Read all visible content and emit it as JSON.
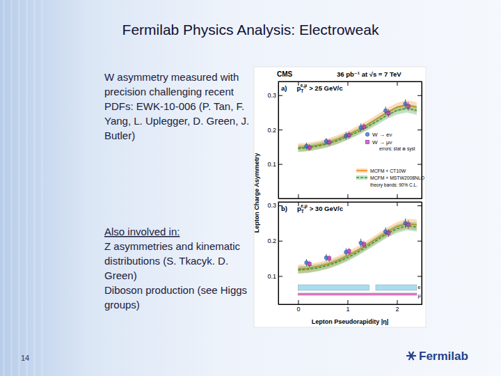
{
  "slide": {
    "title": "Fermilab Physics Analysis: Electroweak",
    "lines": [
      "W asymmetry measured with",
      "precision challenging recent",
      "PDFs:  EWK-10-006 (P. Tan, F.",
      "Yang, L. Uplegger, D. Green, J.",
      "Butler)"
    ],
    "also_heading": "Also involved in:",
    "also_lines": [
      "Z asymmetries and kinematic",
      "distributions (S. Tkacyk. D.",
      "Green)",
      "Diboson production (see Higgs",
      "groups)"
    ],
    "page_number": "14",
    "logo": "Fermilab"
  },
  "figure": {
    "experiment": "CMS",
    "luminosity": "36 pb⁻¹  at  √s = 7 TeV",
    "xlabel": "Lepton Pseudorapidity |η|",
    "ylabel": "Lepton Charge Asymmetry"
  },
  "chart_data": [
    {
      "type": "scatter",
      "panel_label": {
        "prefix": "a)",
        "symbol": "p",
        "sub": "T",
        "sup": "e,μ",
        "rest": "> 25 GeV/c"
      },
      "xlim": [
        -0.4,
        2.5
      ],
      "xticks": [
        0,
        1,
        2
      ],
      "ylim": [
        0.0,
        0.34
      ],
      "yticks": [
        0.1,
        0.2,
        0.3
      ],
      "tick_labels": "y",
      "annotations": [
        "errors: stat ⊕ syst",
        "theory bands: 90% C.L."
      ],
      "series": [
        {
          "name": "MCFM + CT10W",
          "type": "line",
          "color": "#f08a1c",
          "line_style": "solid",
          "x": [
            0,
            0.2,
            0.4,
            0.6,
            0.8,
            1.0,
            1.2,
            1.4,
            1.6,
            1.8,
            2.0,
            2.2,
            2.4
          ],
          "values": [
            0.148,
            0.15,
            0.155,
            0.162,
            0.172,
            0.184,
            0.198,
            0.214,
            0.232,
            0.25,
            0.265,
            0.272,
            0.265
          ],
          "errors": [
            0.012,
            0.012,
            0.012,
            0.012,
            0.012,
            0.012,
            0.012,
            0.012,
            0.012,
            0.013,
            0.013,
            0.014,
            0.015
          ]
        },
        {
          "name": "MCFM + MSTW2008NLO",
          "type": "line",
          "color": "#2f9a3a",
          "line_style": "dashed",
          "x": [
            0,
            0.2,
            0.4,
            0.6,
            0.8,
            1.0,
            1.2,
            1.4,
            1.6,
            1.8,
            2.0,
            2.2,
            2.4
          ],
          "values": [
            0.145,
            0.147,
            0.152,
            0.159,
            0.168,
            0.18,
            0.193,
            0.208,
            0.225,
            0.242,
            0.256,
            0.262,
            0.256
          ],
          "errors": [
            0.01,
            0.01,
            0.01,
            0.01,
            0.01,
            0.01,
            0.01,
            0.01,
            0.011,
            0.011,
            0.012,
            0.012,
            0.013
          ]
        },
        {
          "name": "W → eν",
          "type": "scatter",
          "color": "#3b6fd8",
          "marker": "circle",
          "x": [
            0.17,
            0.57,
            0.97,
            1.27,
            1.77,
            2.17
          ],
          "values": [
            0.152,
            0.166,
            0.182,
            0.206,
            0.255,
            0.275
          ],
          "errors": [
            0.01,
            0.01,
            0.011,
            0.012,
            0.012,
            0.013
          ]
        },
        {
          "name": "W → μν",
          "type": "scatter",
          "color": "#c03cc0",
          "marker": "square",
          "x": [
            0.23,
            0.63,
            1.03,
            1.33,
            1.83,
            2.23
          ],
          "values": [
            0.148,
            0.163,
            0.184,
            0.208,
            0.248,
            0.268
          ],
          "errors": [
            0.009,
            0.009,
            0.01,
            0.01,
            0.011,
            0.012
          ]
        }
      ]
    },
    {
      "type": "scatter",
      "panel_label": {
        "prefix": "b)",
        "symbol": "p",
        "sub": "T",
        "sup": "e,μ",
        "rest": "> 30 GeV/c"
      },
      "xlim": [
        -0.4,
        2.5
      ],
      "xticks": [
        0,
        1,
        2
      ],
      "ylim": [
        0.02,
        0.31
      ],
      "yticks": [
        0.1,
        0.2,
        0.3
      ],
      "bands": [
        {
          "name": "e",
          "color": "#a9dcef",
          "ranges": [
            [
              0,
              1.44
            ],
            [
              1.57,
              2.4
            ]
          ]
        },
        {
          "name": "μ",
          "color": "#e07cc4",
          "ranges": [
            [
              0,
              2.4
            ]
          ]
        }
      ],
      "series": [
        {
          "type": "line",
          "color": "#f08a1c",
          "line_style": "solid",
          "x": [
            0,
            0.2,
            0.4,
            0.6,
            0.8,
            1.0,
            1.2,
            1.4,
            1.6,
            1.8,
            2.0,
            2.2,
            2.4
          ],
          "values": [
            0.12,
            0.122,
            0.127,
            0.134,
            0.144,
            0.157,
            0.172,
            0.189,
            0.207,
            0.225,
            0.24,
            0.248,
            0.245
          ],
          "errors": [
            0.012,
            0.012,
            0.012,
            0.012,
            0.012,
            0.012,
            0.012,
            0.012,
            0.012,
            0.013,
            0.013,
            0.014,
            0.015
          ]
        },
        {
          "type": "line",
          "color": "#2f9a3a",
          "line_style": "dashed",
          "x": [
            0,
            0.2,
            0.4,
            0.6,
            0.8,
            1.0,
            1.2,
            1.4,
            1.6,
            1.8,
            2.0,
            2.2,
            2.4
          ],
          "values": [
            0.117,
            0.119,
            0.123,
            0.13,
            0.14,
            0.152,
            0.167,
            0.184,
            0.202,
            0.22,
            0.234,
            0.242,
            0.239
          ],
          "errors": [
            0.01,
            0.01,
            0.01,
            0.01,
            0.01,
            0.01,
            0.01,
            0.01,
            0.011,
            0.011,
            0.012,
            0.012,
            0.013
          ]
        },
        {
          "type": "scatter",
          "color": "#3b6fd8",
          "marker": "circle",
          "x": [
            0.17,
            0.57,
            0.97,
            1.27,
            1.77,
            2.17
          ],
          "values": [
            0.138,
            0.152,
            0.168,
            0.194,
            0.226,
            0.25
          ],
          "errors": [
            0.01,
            0.01,
            0.011,
            0.012,
            0.012,
            0.013
          ]
        },
        {
          "type": "scatter",
          "color": "#c03cc0",
          "marker": "square",
          "x": [
            0.23,
            0.63,
            1.03,
            1.33,
            1.83,
            2.23
          ],
          "values": [
            0.134,
            0.15,
            0.17,
            0.19,
            0.222,
            0.246
          ],
          "errors": [
            0.009,
            0.009,
            0.01,
            0.01,
            0.011,
            0.012
          ]
        }
      ]
    }
  ]
}
